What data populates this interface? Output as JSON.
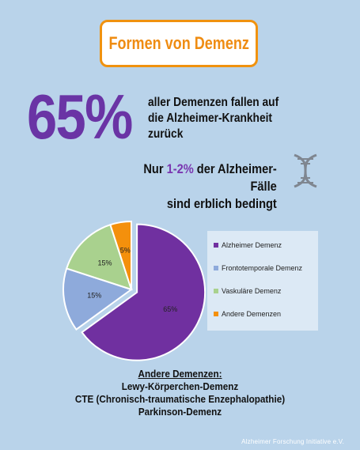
{
  "header": {
    "title": "Formen von Demenz"
  },
  "stat": {
    "percent": "65%",
    "text_line1": "aller Demenzen fallen auf",
    "text_line2": "die Alzheimer-Krankheit",
    "text_line3": "zurück"
  },
  "hereditary": {
    "prefix": "Nur ",
    "percent": "1-2%",
    "suffix": " der Alzheimer-Fälle",
    "line2": "sind erblich bedingt",
    "icon": "dna-icon"
  },
  "chart_data": {
    "type": "pie",
    "categories": [
      "Alzheimer Demenz",
      "Frontotemporale Demenz",
      "Vaskuläre Demenz",
      "Andere Demenzen"
    ],
    "values": [
      65,
      15,
      15,
      5
    ],
    "data_labels": [
      "65%",
      "15%",
      "15%",
      "5%"
    ],
    "colors": [
      "#7030a0",
      "#8eaadb",
      "#a9d18e",
      "#f4900c"
    ],
    "exploded": "Alzheimer Demenz",
    "legend_position": "right"
  },
  "others": {
    "title": "Andere Demenzen:",
    "items": [
      "Lewy-Körperchen-Demenz",
      "CTE  (Chronisch-traumatische Enzephalopathie)",
      "Parkinson-Demenz"
    ]
  },
  "credit": "Alzheimer Forschung Initiative e.V."
}
